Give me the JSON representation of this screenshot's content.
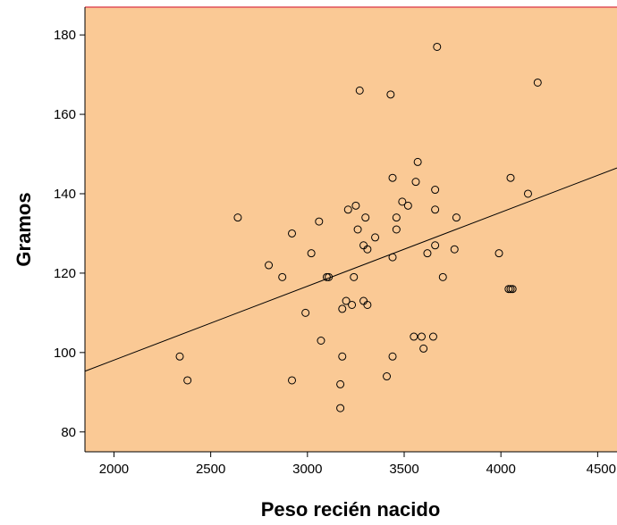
{
  "chart_data": {
    "type": "scatter",
    "xlabel": "Peso recién nacido",
    "ylabel": "Gramos",
    "xlim": [
      1850,
      4600
    ],
    "ylim": [
      75,
      187
    ],
    "x_ticks": [
      2000,
      2500,
      3000,
      3500,
      4000,
      4500
    ],
    "y_ticks": [
      80,
      100,
      120,
      140,
      160,
      180
    ],
    "grid": false,
    "plot_background": "#fac995",
    "top_border_color": "#e0505a",
    "marker": "open-circle",
    "fit_line": {
      "x": [
        1850,
        4600
      ],
      "y": [
        95.3,
        146.5
      ]
    },
    "points": [
      {
        "x": 2340,
        "y": 99
      },
      {
        "x": 2380,
        "y": 93
      },
      {
        "x": 2640,
        "y": 134
      },
      {
        "x": 2800,
        "y": 122
      },
      {
        "x": 2870,
        "y": 119
      },
      {
        "x": 2920,
        "y": 130
      },
      {
        "x": 2920,
        "y": 93
      },
      {
        "x": 2990,
        "y": 110
      },
      {
        "x": 3020,
        "y": 125
      },
      {
        "x": 3060,
        "y": 133
      },
      {
        "x": 3070,
        "y": 103
      },
      {
        "x": 3100,
        "y": 119
      },
      {
        "x": 3110,
        "y": 119
      },
      {
        "x": 3170,
        "y": 92
      },
      {
        "x": 3170,
        "y": 86
      },
      {
        "x": 3180,
        "y": 111
      },
      {
        "x": 3180,
        "y": 99
      },
      {
        "x": 3200,
        "y": 113
      },
      {
        "x": 3210,
        "y": 136
      },
      {
        "x": 3230,
        "y": 112
      },
      {
        "x": 3240,
        "y": 119
      },
      {
        "x": 3250,
        "y": 137
      },
      {
        "x": 3260,
        "y": 131
      },
      {
        "x": 3270,
        "y": 166
      },
      {
        "x": 3290,
        "y": 113
      },
      {
        "x": 3290,
        "y": 127
      },
      {
        "x": 3300,
        "y": 134
      },
      {
        "x": 3310,
        "y": 126
      },
      {
        "x": 3310,
        "y": 112
      },
      {
        "x": 3350,
        "y": 129
      },
      {
        "x": 3410,
        "y": 94
      },
      {
        "x": 3430,
        "y": 165
      },
      {
        "x": 3440,
        "y": 144
      },
      {
        "x": 3440,
        "y": 124
      },
      {
        "x": 3440,
        "y": 99
      },
      {
        "x": 3460,
        "y": 134
      },
      {
        "x": 3460,
        "y": 131
      },
      {
        "x": 3490,
        "y": 138
      },
      {
        "x": 3520,
        "y": 137
      },
      {
        "x": 3550,
        "y": 104
      },
      {
        "x": 3560,
        "y": 143
      },
      {
        "x": 3570,
        "y": 148
      },
      {
        "x": 3590,
        "y": 104
      },
      {
        "x": 3600,
        "y": 101
      },
      {
        "x": 3620,
        "y": 125
      },
      {
        "x": 3650,
        "y": 104
      },
      {
        "x": 3660,
        "y": 141
      },
      {
        "x": 3660,
        "y": 136
      },
      {
        "x": 3660,
        "y": 127
      },
      {
        "x": 3670,
        "y": 177
      },
      {
        "x": 3700,
        "y": 119
      },
      {
        "x": 3760,
        "y": 126
      },
      {
        "x": 3770,
        "y": 134
      },
      {
        "x": 3990,
        "y": 125
      },
      {
        "x": 4040,
        "y": 116
      },
      {
        "x": 4050,
        "y": 144
      },
      {
        "x": 4050,
        "y": 116
      },
      {
        "x": 4060,
        "y": 116
      },
      {
        "x": 4140,
        "y": 140
      },
      {
        "x": 4190,
        "y": 168
      }
    ]
  }
}
